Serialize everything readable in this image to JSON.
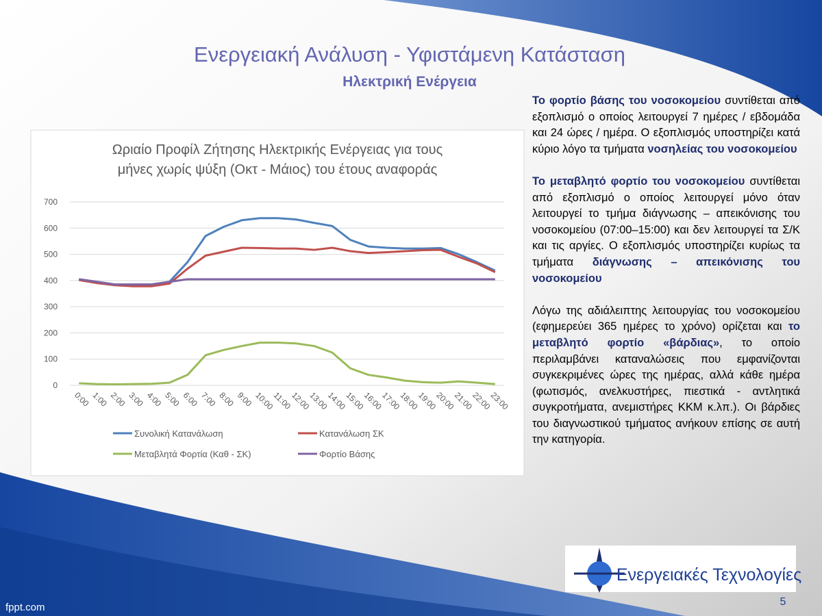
{
  "header": {
    "title": "Ενεργειακή Ανάλυση - Υφιστάμενη Κατάσταση",
    "subtitle": "Ηλεκτρική Ενέργεια"
  },
  "chart_data": {
    "type": "line",
    "title": [
      "Ωριαίο Προφίλ Ζήτησης Ηλεκτρικής Ενέργειας για τους",
      "μήνες χωρίς ψύξη (Οκτ - Μάιος) του έτους αναφοράς"
    ],
    "categories": [
      "0:00",
      "1:00",
      "2:00",
      "3:00",
      "4:00",
      "5:00",
      "6:00",
      "7:00",
      "8:00",
      "9:00",
      "10:00",
      "11:00",
      "12:00",
      "13:00",
      "14:00",
      "15:00",
      "16:00",
      "17:00",
      "18:00",
      "19:00",
      "20:00",
      "21:00",
      "22:00",
      "23:00"
    ],
    "series": [
      {
        "name": "Συνολική Κατανάλωση",
        "color": "#4f81bd",
        "values": [
          405,
          395,
          385,
          385,
          385,
          395,
          470,
          570,
          605,
          630,
          638,
          638,
          633,
          620,
          608,
          555,
          530,
          525,
          522,
          522,
          524,
          500,
          470,
          438
        ]
      },
      {
        "name": "Κατανάλωση ΣΚ",
        "color": "#c0504d",
        "values": [
          402,
          390,
          382,
          378,
          378,
          388,
          445,
          495,
          510,
          525,
          524,
          522,
          522,
          517,
          525,
          512,
          505,
          508,
          512,
          516,
          517,
          490,
          465,
          432
        ]
      },
      {
        "name": "Μεταβλητά Φορτία (Καθ - ΣΚ)",
        "color": "#9bbb59",
        "values": [
          8,
          5,
          4,
          5,
          6,
          10,
          40,
          115,
          135,
          150,
          163,
          163,
          160,
          150,
          125,
          65,
          40,
          30,
          18,
          12,
          10,
          15,
          10,
          5
        ]
      },
      {
        "name": "Φορτίο Βάσης",
        "color": "#8064a2",
        "values": [
          405,
          395,
          385,
          385,
          385,
          395,
          405,
          405,
          405,
          405,
          405,
          405,
          405,
          405,
          405,
          405,
          405,
          405,
          405,
          405,
          405,
          405,
          405,
          405
        ]
      }
    ],
    "ylim": [
      0,
      700
    ],
    "yticks": [
      0,
      100,
      200,
      300,
      400,
      500,
      600,
      700
    ],
    "grid": true
  },
  "text": {
    "paragraphs": [
      [
        {
          "text": "Το φορτίο βάσης του νοσοκομείου",
          "strong": true
        },
        {
          "text": " συντίθεται από εξοπλισμό ο οποίος λειτουργεί 7 ημέρες / εβδομάδα και 24 ώρες / ημέρα. Ο εξοπλισμός υποστηρίζει κατά κύριο λόγο τα τμήματα ",
          "strong": false
        },
        {
          "text": "νοσηλείας του νοσοκομείου",
          "strong": true
        }
      ],
      [
        {
          "text": "Το μεταβλητό φορτίο του νοσοκομείου",
          "strong": true
        },
        {
          "text": " συντίθεται από εξοπλισμό ο οποίος λειτουργεί μόνο όταν λειτουργεί το τμήμα διάγνωσης – απεικόνισης του νοσοκομείου (07:00–15:00) και δεν λειτουργεί τα Σ/Κ και τις αργίες. Ο εξοπλισμός υποστηρίζει κυρίως τα τμήματα ",
          "strong": false
        },
        {
          "text": "διάγνωσης – απεικόνισης του νοσοκομείου",
          "strong": true
        }
      ],
      [
        {
          "text": "Λόγω της αδιάλειπτης λειτουργίας του νοσοκομείου (εφημερεύει 365 ημέρες το χρόνο) ορίζεται και ",
          "strong": false
        },
        {
          "text": "το μεταβλητό φορτίο «βάρδιας»",
          "strong": true
        },
        {
          "text": ", το οποίο περιλαμβάνει καταναλώσεις που εμφανίζονται συγκεκριμένες ώρες της ημέρας, αλλά κάθε ημέρα (φωτισμός, ανελκυστήρες, πιεστικά - αντλητικά συγκροτήματα, ανεμιστήρες ΚΚΜ κ.λπ.). Οι βάρδιες του διαγνωστικού τμήματος ανήκουν επίσης σε αυτή την κατηγορία.",
          "strong": false
        }
      ]
    ]
  },
  "logo": {
    "text": "Ενεργειακές Τεχνολογίες"
  },
  "footer": {
    "page": "5",
    "site": "fppt.com"
  }
}
